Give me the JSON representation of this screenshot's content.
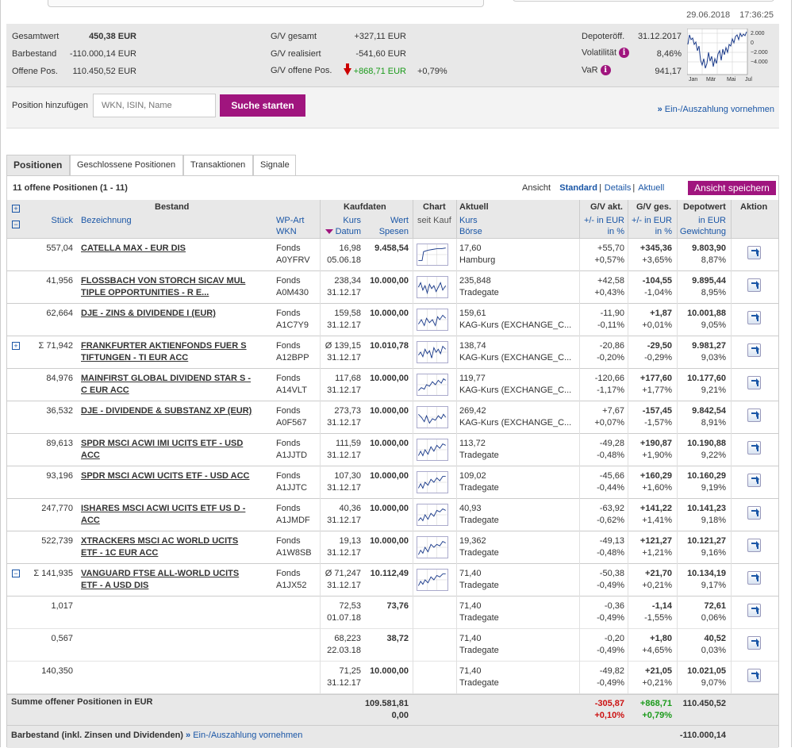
{
  "header": {
    "date": "29.06.2018",
    "time": "17:36:25"
  },
  "summary": {
    "gesamtwert_label": "Gesamtwert",
    "gesamtwert": "450,38 EUR",
    "barbestand_label": "Barbestand",
    "barbestand": "-110.000,14 EUR",
    "offene_label": "Offene Pos.",
    "offene": "110.450,52 EUR",
    "gv_gesamt_label": "G/V gesamt",
    "gv_gesamt": "+327,11 EUR",
    "gv_real_label": "G/V realisiert",
    "gv_real": "-541,60 EUR",
    "gv_offen_label": "G/V offene Pos.",
    "gv_offen": "+868,71 EUR",
    "gv_offen_pct": "+0,79%",
    "depot_label": "Depoteröff.",
    "depot": "31.12.2017",
    "vol_label": "Volatilität",
    "vol": "8,46%",
    "var_label": "VaR",
    "var": "941,17"
  },
  "minichart": {
    "ticks": [
      "2.000",
      "0",
      "−2.000",
      "−4.000"
    ],
    "months": [
      "Jan",
      "Mär",
      "Mai",
      "Jul"
    ]
  },
  "search": {
    "label": "Position hinzufügen",
    "placeholder": "WKN, ISIN, Name",
    "button": "Suche starten",
    "deposit_link": "Ein-/Auszahlung vornehmen"
  },
  "tabs": [
    "Positionen",
    "Geschlossene Positionen",
    "Transaktionen",
    "Signale"
  ],
  "panel": {
    "count": "11 offene Positionen (1 - 11)",
    "ansicht": "Ansicht",
    "views": [
      "Standard",
      "Details",
      "Aktuell"
    ],
    "save": "Ansicht speichern"
  },
  "columns": {
    "bestand": "Bestand",
    "stueck": "Stück",
    "bezeichnung": "Bezeichnung",
    "wpart": "WP-Art",
    "wkn": "WKN",
    "kaufdaten": "Kaufdaten",
    "kurs": "Kurs",
    "datum": "Datum",
    "wert": "Wert",
    "spesen": "Spesen",
    "chart": "Chart",
    "seitkauf": "seit Kauf",
    "aktuell": "Aktuell",
    "akurs": "Kurs",
    "boerse": "Börse",
    "gvakt": "G/V akt.",
    "gvges": "G/V ges.",
    "pm_eur": "+/- in EUR",
    "in_pct": "in %",
    "depotwert": "Depotwert",
    "in_eur": "in EUR",
    "gewichtung": "Gewichtung",
    "aktion": "Aktion"
  },
  "rows": [
    {
      "stueck": "557,04",
      "name": "CATELLA MAX - EUR DIS",
      "art": "Fonds",
      "wkn": "A0YFRV",
      "kurs": "16,98",
      "datum": "05.06.18",
      "wert": "9.458,54",
      "akurs": "17,60",
      "boerse": "Hamburg",
      "gva": "+55,70",
      "gvap": "+0,57%",
      "gvg": "+345,36",
      "gvgp": "+3,65%",
      "dw": "9.803,90",
      "gew": "8,87%",
      "akc": "green",
      "gvac": "green",
      "gvgc": "green"
    },
    {
      "stueck": "41,956",
      "name": "FLOSSBACH VON STORCH SICAV MUL TIPLE OPPORTUNITIES - R E...",
      "art": "Fonds",
      "wkn": "A0M430",
      "kurs": "238,34",
      "datum": "31.12.17",
      "wert": "10.000,00",
      "akurs": "235,848",
      "boerse": "Tradegate",
      "gva": "+42,58",
      "gvap": "+0,43%",
      "gvg": "-104,55",
      "gvgp": "-1,04%",
      "dw": "9.895,44",
      "gew": "8,95%",
      "akc": "green",
      "gvac": "green",
      "gvgc": "red"
    },
    {
      "stueck": "62,664",
      "name": "DJE - ZINS & DIVIDENDE I (EUR)",
      "art": "Fonds",
      "wkn": "A1C7Y9",
      "kurs": "159,58",
      "datum": "31.12.17",
      "wert": "10.000,00",
      "akurs": "159,61",
      "boerse": "KAG-Kurs (EXCHANGE_C...",
      "gva": "-11,90",
      "gvap": "-0,11%",
      "gvg": "+1,87",
      "gvgp": "+0,01%",
      "dw": "10.001,88",
      "gew": "9,05%",
      "akc": "red",
      "gvac": "red",
      "gvgc": "green"
    },
    {
      "stueck": "Σ 71,942",
      "name": "FRANKFURTER AKTIENFONDS FUER S TIFTUNGEN - TI EUR ACC",
      "art": "Fonds",
      "wkn": "A12BPP",
      "kurs": "Ø 139,15",
      "datum": "31.12.17",
      "wert": "10.010,78",
      "akurs": "138,74",
      "boerse": "KAG-Kurs (EXCHANGE_C...",
      "gva": "-20,86",
      "gvap": "-0,20%",
      "gvg": "-29,50",
      "gvgp": "-0,29%",
      "dw": "9.981,27",
      "gew": "9,03%",
      "akc": "red",
      "gvac": "red",
      "gvgc": "red",
      "expand": "+"
    },
    {
      "stueck": "84,976",
      "name": "MAINFIRST GLOBAL DIVIDEND STAR S - C EUR ACC",
      "art": "Fonds",
      "wkn": "A14VLT",
      "kurs": "117,68",
      "datum": "31.12.17",
      "wert": "10.000,00",
      "akurs": "119,77",
      "boerse": "KAG-Kurs (EXCHANGE_C...",
      "gva": "-120,66",
      "gvap": "-1,17%",
      "gvg": "+177,60",
      "gvgp": "+1,77%",
      "dw": "10.177,60",
      "gew": "9,21%",
      "akc": "red",
      "gvac": "red",
      "gvgc": "green"
    },
    {
      "stueck": "36,532",
      "name": "DJE - DIVIDENDE & SUBSTANZ XP (EUR)",
      "art": "Fonds",
      "wkn": "A0F567",
      "kurs": "273,73",
      "datum": "31.12.17",
      "wert": "10.000,00",
      "akurs": "269,42",
      "boerse": "KAG-Kurs (EXCHANGE_C...",
      "gva": "+7,67",
      "gvap": "+0,07%",
      "gvg": "-157,45",
      "gvgp": "-1,57%",
      "dw": "9.842,54",
      "gew": "8,91%",
      "akc": "green",
      "gvac": "green",
      "gvgc": "red"
    },
    {
      "stueck": "89,613",
      "name": "SPDR MSCI ACWI IMI UCITS ETF - USD ACC",
      "art": "Fonds",
      "wkn": "A1JJTD",
      "kurs": "111,59",
      "datum": "31.12.17",
      "wert": "10.000,00",
      "akurs": "113,72",
      "boerse": "Tradegate",
      "gva": "-49,28",
      "gvap": "-0,48%",
      "gvg": "+190,87",
      "gvgp": "+1,90%",
      "dw": "10.190,88",
      "gew": "9,22%",
      "akc": "red",
      "gvac": "red",
      "gvgc": "green"
    },
    {
      "stueck": "93,196",
      "name": "SPDR MSCI ACWI UCITS ETF - USD ACC",
      "art": "Fonds",
      "wkn": "A1JJTC",
      "kurs": "107,30",
      "datum": "31.12.17",
      "wert": "10.000,00",
      "akurs": "109,02",
      "boerse": "Tradegate",
      "gva": "-45,66",
      "gvap": "-0,44%",
      "gvg": "+160,29",
      "gvgp": "+1,60%",
      "dw": "10.160,29",
      "gew": "9,19%",
      "akc": "red",
      "gvac": "red",
      "gvgc": "green"
    },
    {
      "stueck": "247,770",
      "name": "ISHARES MSCI ACWI UCITS ETF US D - ACC",
      "art": "Fonds",
      "wkn": "A1JMDF",
      "kurs": "40,36",
      "datum": "31.12.17",
      "wert": "10.000,00",
      "akurs": "40,93",
      "boerse": "Tradegate",
      "gva": "-63,92",
      "gvap": "-0,62%",
      "gvg": "+141,22",
      "gvgp": "+1,41%",
      "dw": "10.141,23",
      "gew": "9,18%",
      "akc": "red",
      "gvac": "red",
      "gvgc": "green"
    },
    {
      "stueck": "522,739",
      "name": "XTRACKERS MSCI AC WORLD UCITS ETF - 1C EUR ACC",
      "art": "Fonds",
      "wkn": "A1W8SB",
      "kurs": "19,13",
      "datum": "31.12.17",
      "wert": "10.000,00",
      "akurs": "19,362",
      "boerse": "Tradegate",
      "gva": "-49,13",
      "gvap": "-0,48%",
      "gvg": "+121,27",
      "gvgp": "+1,21%",
      "dw": "10.121,27",
      "gew": "9,16%",
      "akc": "red",
      "gvac": "red",
      "gvgc": "green"
    },
    {
      "stueck": "Σ 141,935",
      "name": "VANGUARD FTSE ALL-WORLD UCITS ETF - A USD DIS",
      "art": "Fonds",
      "wkn": "A1JX52",
      "kurs": "Ø 71,247",
      "datum": "31.12.17",
      "wert": "10.112,49",
      "akurs": "71,40",
      "boerse": "Tradegate",
      "gva": "-50,38",
      "gvap": "-0,49%",
      "gvg": "+21,70",
      "gvgp": "+0,21%",
      "dw": "10.134,19",
      "gew": "9,17%",
      "akc": "red",
      "gvac": "red",
      "gvgc": "green",
      "expand": "−"
    },
    {
      "stueck": "1,017",
      "name": "",
      "art": "",
      "wkn": "",
      "kurs": "72,53",
      "datum": "01.07.18",
      "wert": "73,76",
      "akurs": "71,40",
      "boerse": "Tradegate",
      "gva": "-0,36",
      "gvap": "-0,49%",
      "gvg": "-1,14",
      "gvgp": "-1,55%",
      "dw": "72,61",
      "gew": "0,06%",
      "akc": "red",
      "gvac": "red",
      "gvgc": "red",
      "sub": true
    },
    {
      "stueck": "0,567",
      "name": "",
      "art": "",
      "wkn": "",
      "kurs": "68,223",
      "datum": "22.03.18",
      "wert": "38,72",
      "akurs": "71,40",
      "boerse": "Tradegate",
      "gva": "-0,20",
      "gvap": "-0,49%",
      "gvg": "+1,80",
      "gvgp": "+4,65%",
      "dw": "40,52",
      "gew": "0,03%",
      "akc": "red",
      "gvac": "red",
      "gvgc": "green",
      "sub": true
    },
    {
      "stueck": "140,350",
      "name": "",
      "art": "",
      "wkn": "",
      "kurs": "71,25",
      "datum": "31.12.17",
      "wert": "10.000,00",
      "akurs": "71,40",
      "boerse": "Tradegate",
      "gva": "-49,82",
      "gvap": "-0,49%",
      "gvg": "+21,05",
      "gvgp": "+0,21%",
      "dw": "10.021,05",
      "gew": "9,07%",
      "akc": "red",
      "gvac": "red",
      "gvgc": "green",
      "sub": true
    }
  ],
  "footer": {
    "sum_label": "Summe offener Positionen in EUR",
    "sum_wert": "109.581,81",
    "sum_spesen": "0,00",
    "sum_gva": "-305,87",
    "sum_gvap": "+0,10%",
    "sum_gvg": "+868,71",
    "sum_gvgp": "+0,79%",
    "sum_dw": "110.450,52",
    "bar_label": "Barbestand (inkl. Zinsen und Dividenden)",
    "bar_link": "Ein-/Auszahlung vornehmen",
    "bar_value": "-110.000,14"
  },
  "colors": {
    "accent": "#a0157e",
    "link": "#1a56a6",
    "gain": "#1a9a1a",
    "loss": "#cc1111"
  }
}
